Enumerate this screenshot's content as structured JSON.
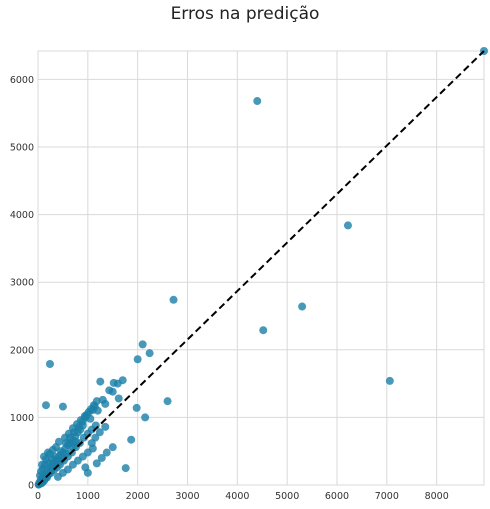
{
  "chart_data": {
    "type": "scatter",
    "title": "Erros na predição",
    "xlabel": "",
    "ylabel": "",
    "xlim": [
      0,
      8950
    ],
    "ylim": [
      0,
      6420
    ],
    "x_ticks": [
      0,
      1000,
      2000,
      3000,
      4000,
      5000,
      6000,
      7000,
      8000
    ],
    "y_ticks": [
      0,
      1000,
      2000,
      3000,
      4000,
      5000,
      6000
    ],
    "grid": true,
    "point_color": "#1a7fa8",
    "identity_line": {
      "style": "dashed",
      "color": "#000000",
      "from": [
        0,
        0
      ],
      "to": [
        8950,
        6420
      ]
    },
    "points": [
      [
        8950,
        6420
      ],
      [
        4400,
        5680
      ],
      [
        6220,
        3840
      ],
      [
        2720,
        2740
      ],
      [
        5300,
        2640
      ],
      [
        4520,
        2290
      ],
      [
        7060,
        1540
      ],
      [
        2100,
        2080
      ],
      [
        2240,
        1950
      ],
      [
        2000,
        1860
      ],
      [
        240,
        1790
      ],
      [
        2600,
        1240
      ],
      [
        2150,
        1000
      ],
      [
        1980,
        1140
      ],
      [
        1870,
        670
      ],
      [
        1760,
        250
      ],
      [
        1250,
        1530
      ],
      [
        1520,
        1510
      ],
      [
        1430,
        1400
      ],
      [
        1620,
        1280
      ],
      [
        1300,
        1260
      ],
      [
        1600,
        1500
      ],
      [
        160,
        1180
      ],
      [
        500,
        1160
      ],
      [
        1100,
        1110
      ],
      [
        950,
        1000
      ],
      [
        1350,
        1200
      ],
      [
        1200,
        1100
      ],
      [
        1500,
        1380
      ],
      [
        1700,
        1550
      ],
      [
        1050,
        980
      ],
      [
        900,
        880
      ],
      [
        850,
        820
      ],
      [
        800,
        780
      ],
      [
        750,
        720
      ],
      [
        700,
        660
      ],
      [
        650,
        620
      ],
      [
        600,
        590
      ],
      [
        550,
        540
      ],
      [
        500,
        480
      ],
      [
        450,
        440
      ],
      [
        400,
        400
      ],
      [
        350,
        360
      ],
      [
        300,
        310
      ],
      [
        250,
        270
      ],
      [
        200,
        220
      ],
      [
        150,
        170
      ],
      [
        100,
        120
      ],
      [
        60,
        80
      ],
      [
        30,
        40
      ],
      [
        20,
        10
      ],
      [
        80,
        30
      ],
      [
        120,
        60
      ],
      [
        180,
        110
      ],
      [
        260,
        180
      ],
      [
        320,
        220
      ],
      [
        380,
        260
      ],
      [
        440,
        300
      ],
      [
        520,
        360
      ],
      [
        600,
        420
      ],
      [
        680,
        480
      ],
      [
        760,
        560
      ],
      [
        840,
        620
      ],
      [
        920,
        700
      ],
      [
        1000,
        760
      ],
      [
        1080,
        820
      ],
      [
        1160,
        880
      ],
      [
        300,
        520
      ],
      [
        200,
        480
      ],
      [
        120,
        420
      ],
      [
        80,
        300
      ],
      [
        160,
        380
      ],
      [
        240,
        460
      ],
      [
        360,
        560
      ],
      [
        420,
        640
      ],
      [
        540,
        700
      ],
      [
        620,
        760
      ],
      [
        700,
        840
      ],
      [
        780,
        900
      ],
      [
        860,
        960
      ],
      [
        940,
        1020
      ],
      [
        1020,
        1080
      ],
      [
        1120,
        1180
      ],
      [
        1180,
        1240
      ],
      [
        400,
        120
      ],
      [
        500,
        180
      ],
      [
        600,
        230
      ],
      [
        700,
        300
      ],
      [
        800,
        360
      ],
      [
        900,
        420
      ],
      [
        1000,
        480
      ],
      [
        1100,
        540
      ],
      [
        1000,
        180
      ],
      [
        950,
        260
      ],
      [
        1180,
        320
      ],
      [
        1280,
        400
      ],
      [
        1380,
        480
      ],
      [
        1500,
        560
      ],
      [
        1080,
        620
      ],
      [
        1150,
        700
      ],
      [
        1240,
        780
      ],
      [
        1350,
        860
      ],
      [
        60,
        200
      ],
      [
        40,
        140
      ],
      [
        100,
        240
      ],
      [
        140,
        300
      ],
      [
        220,
        330
      ],
      [
        280,
        380
      ],
      [
        340,
        420
      ],
      [
        460,
        500
      ],
      [
        560,
        620
      ],
      [
        640,
        700
      ],
      [
        720,
        780
      ],
      [
        820,
        860
      ],
      [
        900,
        940
      ],
      [
        980,
        1040
      ],
      [
        1060,
        1120
      ],
      [
        1140,
        1160
      ],
      [
        700,
        560
      ],
      [
        760,
        640
      ],
      [
        560,
        460
      ],
      [
        480,
        380
      ],
      [
        420,
        340
      ],
      [
        360,
        300
      ],
      [
        300,
        260
      ],
      [
        260,
        220
      ],
      [
        220,
        160
      ],
      [
        180,
        130
      ],
      [
        140,
        90
      ],
      [
        90,
        50
      ],
      [
        50,
        20
      ],
      [
        10,
        5
      ]
    ]
  }
}
